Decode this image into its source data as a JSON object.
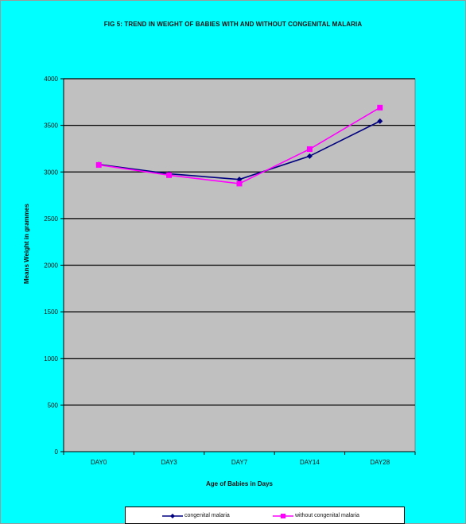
{
  "chart_data": {
    "type": "line",
    "title": "FIG 5: TREND IN WEIGHT OF BABIES WITH AND WITHOUT CONGENITAL MALARIA",
    "xlabel": "Age of Babies in Days",
    "ylabel": "Means Weight in grammes",
    "categories": [
      "DAY0",
      "DAY3",
      "DAY7",
      "DAY14",
      "DAY28"
    ],
    "ylim": [
      0,
      4000
    ],
    "yticks": [
      0,
      500,
      1000,
      1500,
      2000,
      2500,
      3000,
      3500,
      4000
    ],
    "grid": true,
    "legend_position": "bottom",
    "plot_background": "#c0c0c0",
    "chart_background": "#00ffff",
    "series": [
      {
        "name": "congenital malaria",
        "values": [
          3080,
          2980,
          2920,
          3170,
          3545
        ],
        "color": "#000080",
        "marker": "diamond"
      },
      {
        "name": "without congenital malaria",
        "values": [
          3075,
          2965,
          2875,
          3245,
          3690
        ],
        "color": "#ff00ff",
        "marker": "square"
      }
    ]
  }
}
